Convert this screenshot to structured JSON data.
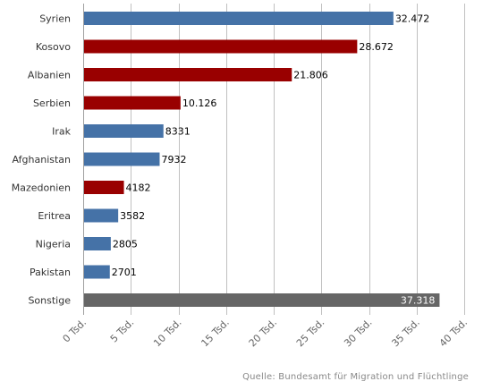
{
  "chart_data": {
    "type": "bar",
    "orientation": "horizontal",
    "categories": [
      "Syrien",
      "Kosovo",
      "Albanien",
      "Serbien",
      "Irak",
      "Afghanistan",
      "Mazedonien",
      "Eritrea",
      "Nigeria",
      "Pakistan",
      "Sonstige"
    ],
    "values": [
      32472,
      28672,
      21806,
      10126,
      8331,
      7932,
      4182,
      3582,
      2805,
      2701,
      37318
    ],
    "value_labels": [
      "32.472",
      "28.672",
      "21.806",
      "10.126",
      "8331",
      "7932",
      "4182",
      "3582",
      "2805",
      "2701",
      "37.318"
    ],
    "bar_colors": [
      "#4572a7",
      "#990000",
      "#990000",
      "#990000",
      "#4572a7",
      "#4572a7",
      "#990000",
      "#4572a7",
      "#4572a7",
      "#4572a7",
      "#666666"
    ],
    "xlim": [
      0,
      40000
    ],
    "tick_values": [
      0,
      5000,
      10000,
      15000,
      20000,
      25000,
      30000,
      35000,
      40000
    ],
    "tick_labels": [
      "0 Tsd.",
      "5 Tsd.",
      "10 Tsd.",
      "15 Tsd.",
      "20 Tsd.",
      "25 Tsd.",
      "30 Tsd.",
      "35 Tsd.",
      "40 Tsd."
    ],
    "grid": true,
    "title": "",
    "xlabel": "",
    "ylabel": ""
  },
  "source": "Quelle: Bundesamt für Migration und Flüchtlinge",
  "colors": {
    "blue": "#4572a7",
    "red": "#990000",
    "gray": "#666666",
    "grid": "#c0c0c0"
  }
}
